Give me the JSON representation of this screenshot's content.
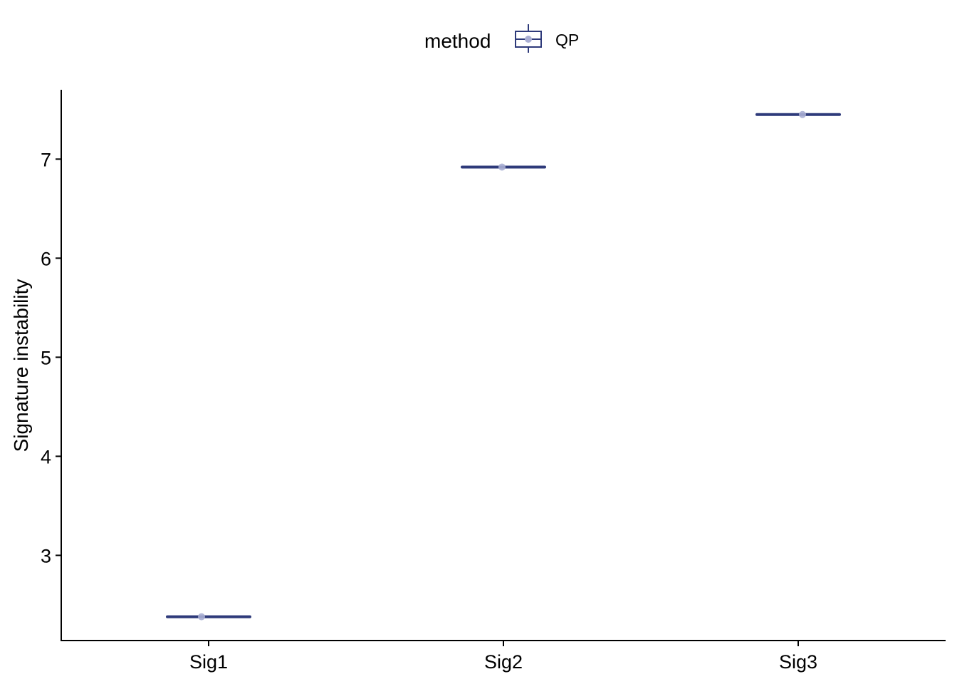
{
  "chart_data": {
    "type": "box",
    "xlabel": "",
    "ylabel": "Signature instability",
    "categories": [
      "Sig1",
      "Sig2",
      "Sig3"
    ],
    "ylim": [
      2.14,
      7.7
    ],
    "yticks": [
      3,
      4,
      5,
      6,
      7
    ],
    "legend": {
      "title": "method",
      "position": "top",
      "entries": [
        "QP"
      ]
    },
    "series": [
      {
        "name": "QP",
        "color": "#2e3a7a",
        "point_color": "#a9aed3",
        "values": [
          2.38,
          6.92,
          7.45
        ]
      }
    ],
    "grid": false
  }
}
